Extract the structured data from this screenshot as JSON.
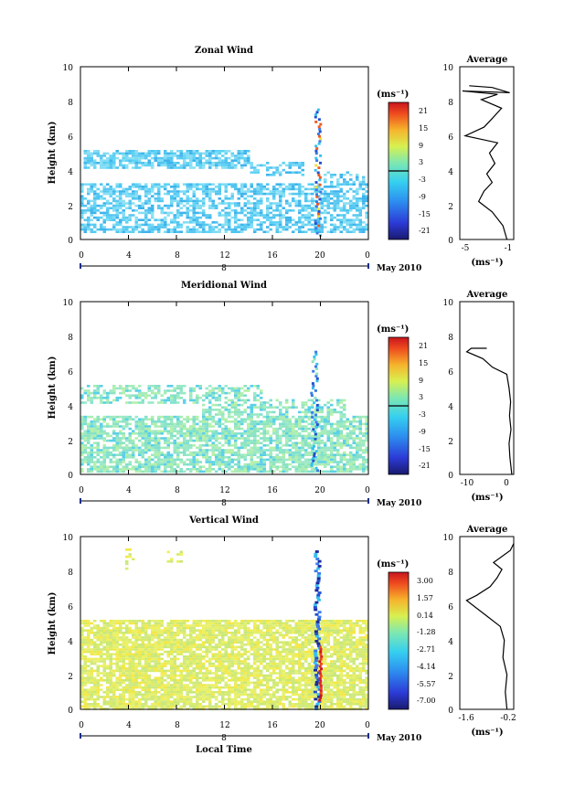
{
  "figure": {
    "xlabel": "Local Time",
    "date_label": "May 2010",
    "date_marker": "8",
    "ylabel": "Height (km)",
    "unit": "(ms⁻¹)",
    "avg_title": "Average",
    "avg_unit": "(ms⁻¹)"
  },
  "chart_data": [
    {
      "type": "heatmap",
      "title": "Zonal Wind",
      "xlabel": "",
      "ylabel": "Height (km)",
      "xlim": [
        0,
        24
      ],
      "ylim": [
        0,
        10
      ],
      "xticks": [
        "0",
        "4",
        "8",
        "12",
        "16",
        "20",
        "0"
      ],
      "yticks": [
        "0",
        "2",
        "4",
        "6",
        "8",
        "10"
      ],
      "colorbar": {
        "ticks": [
          "21",
          "15",
          "9",
          "3",
          "-3",
          "-9",
          "-15",
          "-21"
        ],
        "range": [
          -24,
          24
        ]
      },
      "average": {
        "xlim": [
          -5,
          -1
        ],
        "xticks": [
          "-5",
          "-1"
        ],
        "yticks": [
          "0",
          "2",
          "4",
          "6",
          "8",
          "10"
        ]
      }
    },
    {
      "type": "heatmap",
      "title": "Meridional Wind",
      "xlabel": "",
      "ylabel": "Height (km)",
      "xlim": [
        0,
        24
      ],
      "ylim": [
        0,
        10
      ],
      "xticks": [
        "0",
        "4",
        "8",
        "12",
        "16",
        "20",
        "0"
      ],
      "yticks": [
        "0",
        "2",
        "4",
        "6",
        "8",
        "10"
      ],
      "colorbar": {
        "ticks": [
          "21",
          "15",
          "9",
          "3",
          "-3",
          "-9",
          "-15",
          "-21"
        ],
        "range": [
          -24,
          24
        ]
      },
      "average": {
        "xlim": [
          -12,
          2
        ],
        "xticks": [
          "-10",
          "0"
        ],
        "yticks": [
          "0",
          "2",
          "4",
          "6",
          "8",
          "10"
        ]
      }
    },
    {
      "type": "heatmap",
      "title": "Vertical Wind",
      "xlabel": "Local Time",
      "ylabel": "Height (km)",
      "xlim": [
        0,
        24
      ],
      "ylim": [
        0,
        10
      ],
      "xticks": [
        "0",
        "4",
        "8",
        "12",
        "16",
        "20",
        "0"
      ],
      "yticks": [
        "0",
        "2",
        "4",
        "6",
        "8",
        "10"
      ],
      "colorbar": {
        "ticks": [
          "3.00",
          "1.57",
          "0.14",
          "-1.28",
          "-2.71",
          "-4.14",
          "-5.57",
          "-7.00"
        ],
        "range": [
          -7.7,
          3.7
        ]
      },
      "average": {
        "xlim": [
          -1.7,
          -0.1
        ],
        "xticks": [
          "-1.6",
          "-0.2"
        ],
        "yticks": [
          "0",
          "2",
          "4",
          "6",
          "8",
          "10"
        ]
      }
    }
  ]
}
